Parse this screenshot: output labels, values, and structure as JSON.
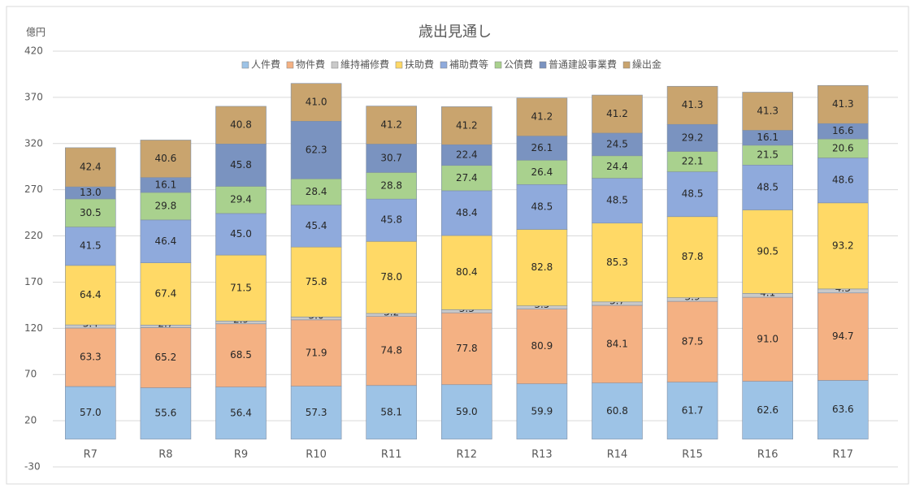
{
  "chart_data": {
    "type": "stacked_bar",
    "title": "歳出見通し",
    "y_label": "億円",
    "categories": [
      "R7",
      "R8",
      "R9",
      "R10",
      "R11",
      "R12",
      "R13",
      "R14",
      "R15",
      "R16",
      "R17"
    ],
    "series": [
      {
        "name": "人件費",
        "color": "#9dc3e6",
        "values": [
          57.0,
          55.6,
          56.4,
          57.3,
          58.1,
          59.0,
          59.9,
          60.8,
          61.7,
          62.6,
          63.6
        ],
        "value_labels": [
          "57.0",
          "55.6",
          "56.4",
          "57.3",
          "58.1",
          "59.0",
          "59.9",
          "60.8",
          "61.7",
          "62.6",
          "63.6"
        ]
      },
      {
        "name": "物件費",
        "color": "#f4b183",
        "values": [
          63.3,
          65.2,
          68.5,
          71.9,
          74.8,
          77.8,
          80.9,
          84.1,
          87.5,
          91.0,
          94.7
        ],
        "value_labels": [
          "63.3",
          "65.2",
          "68.5",
          "71.9",
          "74.8",
          "77.8",
          "80.9",
          "84.1",
          "87.5",
          "91.0",
          "94.7"
        ]
      },
      {
        "name": "維持補修費",
        "color": "#c9c9c9",
        "values": [
          3.4,
          2.7,
          2.9,
          3.0,
          3.2,
          3.3,
          3.5,
          3.7,
          3.9,
          4.1,
          4.3
        ],
        "value_labels": [
          "3.4",
          "2.7",
          "2.9",
          "3.0",
          "3.2",
          "3.3",
          "3.5",
          "3.7",
          "3.9",
          "4.1",
          "4.3"
        ]
      },
      {
        "name": "扶助費",
        "color": "#ffd966",
        "values": [
          64.4,
          67.4,
          71.5,
          75.8,
          78.0,
          80.4,
          82.8,
          85.3,
          87.8,
          90.5,
          93.2
        ],
        "value_labels": [
          "64.4",
          "67.4",
          "71.5",
          "75.8",
          "78.0",
          "80.4",
          "82.8",
          "85.3",
          "87.8",
          "90.5",
          "93.2"
        ]
      },
      {
        "name": "補助費等",
        "color": "#8faadc",
        "values": [
          41.5,
          46.4,
          45.0,
          45.4,
          45.8,
          48.4,
          48.5,
          48.5,
          48.5,
          48.5,
          48.6
        ],
        "value_labels": [
          "41.5",
          "46.4",
          "45.0",
          "45.4",
          "45.8",
          "48.4",
          "48.5",
          "48.5",
          "48.5",
          "48.5",
          "48.6"
        ]
      },
      {
        "name": "公債費",
        "color": "#a9d18e",
        "values": [
          30.5,
          29.8,
          29.4,
          28.4,
          28.8,
          27.4,
          26.4,
          24.4,
          22.1,
          21.5,
          20.6
        ],
        "value_labels": [
          "30.5",
          "29.8",
          "29.4",
          "28.4",
          "28.8",
          "27.4",
          "26.4",
          "24.4",
          "22.1",
          "21.5",
          "20.6"
        ]
      },
      {
        "name": "普通建設事業費",
        "color": "#7a93c0",
        "values": [
          13.0,
          16.1,
          45.8,
          62.3,
          30.7,
          22.4,
          26.1,
          24.5,
          29.2,
          16.1,
          16.6
        ],
        "value_labels": [
          "13.0",
          "16.1",
          "45.8",
          "62.3",
          "30.7",
          "22.4",
          "26.1",
          "24.5",
          "29.2",
          "16.1",
          "16.6"
        ]
      },
      {
        "name": "繰出金",
        "color": "#c9a46e",
        "values": [
          42.4,
          40.6,
          40.8,
          41.0,
          41.2,
          41.2,
          41.2,
          41.2,
          41.3,
          41.3,
          41.3
        ],
        "value_labels": [
          "42.4",
          "40.6",
          "40.8",
          "41.0",
          "41.2",
          "41.2",
          "41.2",
          "41.2",
          "41.3",
          "41.3",
          "41.3"
        ]
      }
    ],
    "ylim": [
      -30,
      420
    ],
    "yticks": [
      -30,
      20,
      70,
      120,
      170,
      220,
      270,
      320,
      370,
      420
    ],
    "grid": true
  }
}
